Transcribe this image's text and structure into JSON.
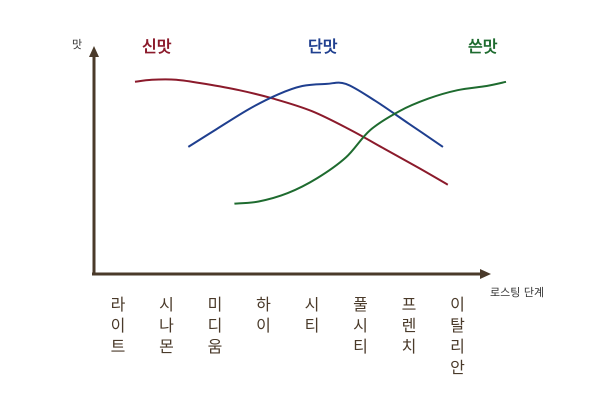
{
  "chart_data": {
    "type": "line",
    "ylabel": "맛",
    "xlabel": "로스팅 단계",
    "categories": [
      "라이트",
      "시나몬",
      "미디움",
      "하이",
      "시티",
      "풀시티",
      "프렌치",
      "이탈리안"
    ],
    "ylim": [
      0,
      10
    ],
    "grid": false,
    "series": [
      {
        "name": "신맛",
        "color": "#8b1a2b",
        "points": [
          [
            0.35,
            9.2
          ],
          [
            0.7,
            9.3
          ],
          [
            1.2,
            9.3
          ],
          [
            1.8,
            9.1
          ],
          [
            2.5,
            8.8
          ],
          [
            3.2,
            8.4
          ],
          [
            4.0,
            7.8
          ],
          [
            4.8,
            6.9
          ],
          [
            5.5,
            6.0
          ],
          [
            6.2,
            5.1
          ],
          [
            6.8,
            4.3
          ]
        ]
      },
      {
        "name": "단맛",
        "color": "#1f3f8f",
        "points": [
          [
            1.45,
            6.1
          ],
          [
            2.0,
            6.9
          ],
          [
            2.7,
            7.9
          ],
          [
            3.3,
            8.6
          ],
          [
            3.8,
            9.0
          ],
          [
            4.3,
            9.1
          ],
          [
            4.7,
            9.1
          ],
          [
            5.3,
            8.3
          ],
          [
            6.0,
            7.2
          ],
          [
            6.7,
            6.1
          ]
        ]
      },
      {
        "name": "쓴맛",
        "color": "#1e6b2f",
        "points": [
          [
            2.4,
            3.4
          ],
          [
            2.9,
            3.5
          ],
          [
            3.5,
            3.9
          ],
          [
            4.1,
            4.6
          ],
          [
            4.7,
            5.6
          ],
          [
            5.2,
            6.9
          ],
          [
            5.8,
            7.8
          ],
          [
            6.4,
            8.4
          ],
          [
            7.0,
            8.8
          ],
          [
            7.6,
            9.0
          ],
          [
            8.0,
            9.2
          ]
        ]
      }
    ]
  }
}
